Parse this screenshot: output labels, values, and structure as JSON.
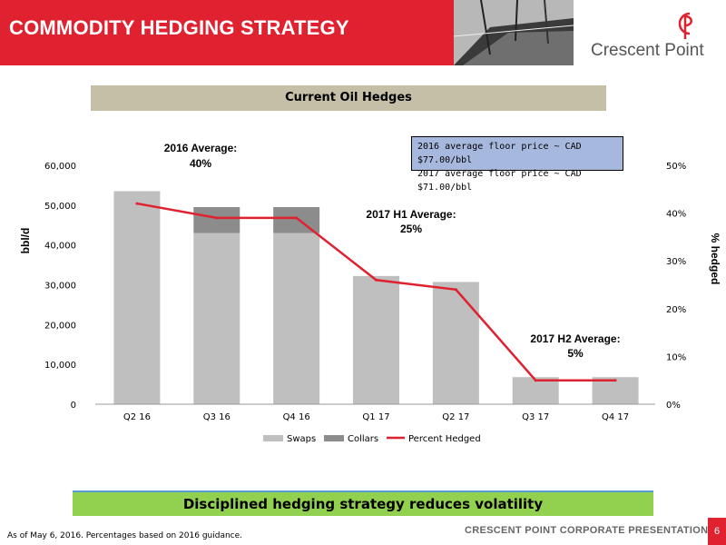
{
  "header": {
    "title": "COMMODITY HEDGING STRATEGY",
    "logo_text": "Crescent Point"
  },
  "section_title": "Current Oil Hedges",
  "info_box": {
    "line1": "2016 average floor price ~ CAD $77.00/bbl",
    "line2": "2017 average floor price ~ CAD $71.00/bbl"
  },
  "chart_data": {
    "type": "bar",
    "categories": [
      "Q2 16",
      "Q3 16",
      "Q4 16",
      "Q1 17",
      "Q2 17",
      "Q3 17",
      "Q4 17"
    ],
    "series": [
      {
        "name": "Swaps",
        "type": "bar",
        "axis": "left",
        "values": [
          53500,
          43000,
          43000,
          32200,
          30700,
          6800,
          6800
        ]
      },
      {
        "name": "Collars",
        "type": "bar",
        "axis": "left",
        "values": [
          0,
          6500,
          6500,
          0,
          0,
          0,
          0
        ]
      },
      {
        "name": "Percent Hedged",
        "type": "line",
        "axis": "right",
        "values": [
          42,
          39,
          39,
          26,
          24,
          5,
          5
        ]
      }
    ],
    "ylabel": "bbl/d",
    "y2label": "% hedged",
    "ylim": [
      0,
      60000
    ],
    "y2lim": [
      0,
      50
    ],
    "yticks": [
      "0",
      "10,000",
      "20,000",
      "30,000",
      "40,000",
      "50,000",
      "60,000"
    ],
    "y2ticks": [
      "0%",
      "10%",
      "20%",
      "30%",
      "40%",
      "50%"
    ],
    "legend_position": "bottom",
    "annotations": [
      {
        "line1": "2016 Average:",
        "line2": "40%"
      },
      {
        "line1": "2017 H1 Average:",
        "line2": "25%"
      },
      {
        "line1": "2017 H2 Average:",
        "line2": "5%"
      }
    ],
    "colors": {
      "swaps": "#bfbfbf",
      "collars": "#8c8c8c",
      "line": "#e0212f"
    }
  },
  "conclusion": "Disciplined hedging strategy reduces volatility",
  "footer": {
    "note": "As of May 6, 2016. Percentages based on 2016 guidance.",
    "label": "CRESCENT POINT CORPORATE PRESENTATION",
    "page": "6"
  }
}
